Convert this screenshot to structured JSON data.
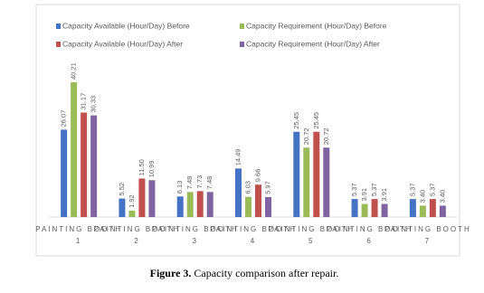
{
  "chart_data": {
    "type": "bar",
    "categories": [
      "PAINTING BOOTH 1",
      "PAINTING BOOTH 2",
      "PAINTING BOOTH 3",
      "PAINTING BOOTH 4",
      "PAINTING BOOTH 5",
      "PAINTING BOOTH 6",
      "PAINTING BOOTH 7"
    ],
    "series": [
      {
        "name": "Capacity Available (Hour/Day) Before",
        "color": "#4472c4",
        "values": [
          26.07,
          5.52,
          6.13,
          14.49,
          25.45,
          5.37,
          5.37
        ],
        "value_labels": [
          "26.07",
          "5.52",
          "6.13",
          "14.49",
          "25.45",
          "5.37",
          "5.37"
        ]
      },
      {
        "name": "Capacity Requirement (Hour/Day) Before",
        "color": "#9bbb59",
        "values": [
          40.21,
          1.92,
          7.48,
          6.03,
          20.72,
          3.91,
          3.4
        ],
        "value_labels": [
          "40.21",
          "1.92",
          "7.48",
          "6.03",
          "20.72",
          "3.91",
          "3.40"
        ]
      },
      {
        "name": "Capacity Available (Hour/Day) After",
        "color": "#c0504d",
        "values": [
          31.17,
          11.5,
          7.73,
          9.66,
          25.45,
          5.37,
          5.37
        ],
        "value_labels": [
          "31.17",
          "11.50",
          "7.73",
          "9.66",
          "25.45",
          "5.37",
          "5.37"
        ]
      },
      {
        "name": "Capacity Requirement (Hour/Day) After",
        "color": "#8064a2",
        "values": [
          30.33,
          10.99,
          7.48,
          5.97,
          20.72,
          3.91,
          3.4
        ],
        "value_labels": [
          "30.33",
          "10.99",
          "7.48",
          "5.97",
          "20.72",
          "3.91",
          "3.40"
        ]
      }
    ]
  },
  "caption": {
    "label": "Figure 3.",
    "text": "Capacity comparison after repair."
  }
}
